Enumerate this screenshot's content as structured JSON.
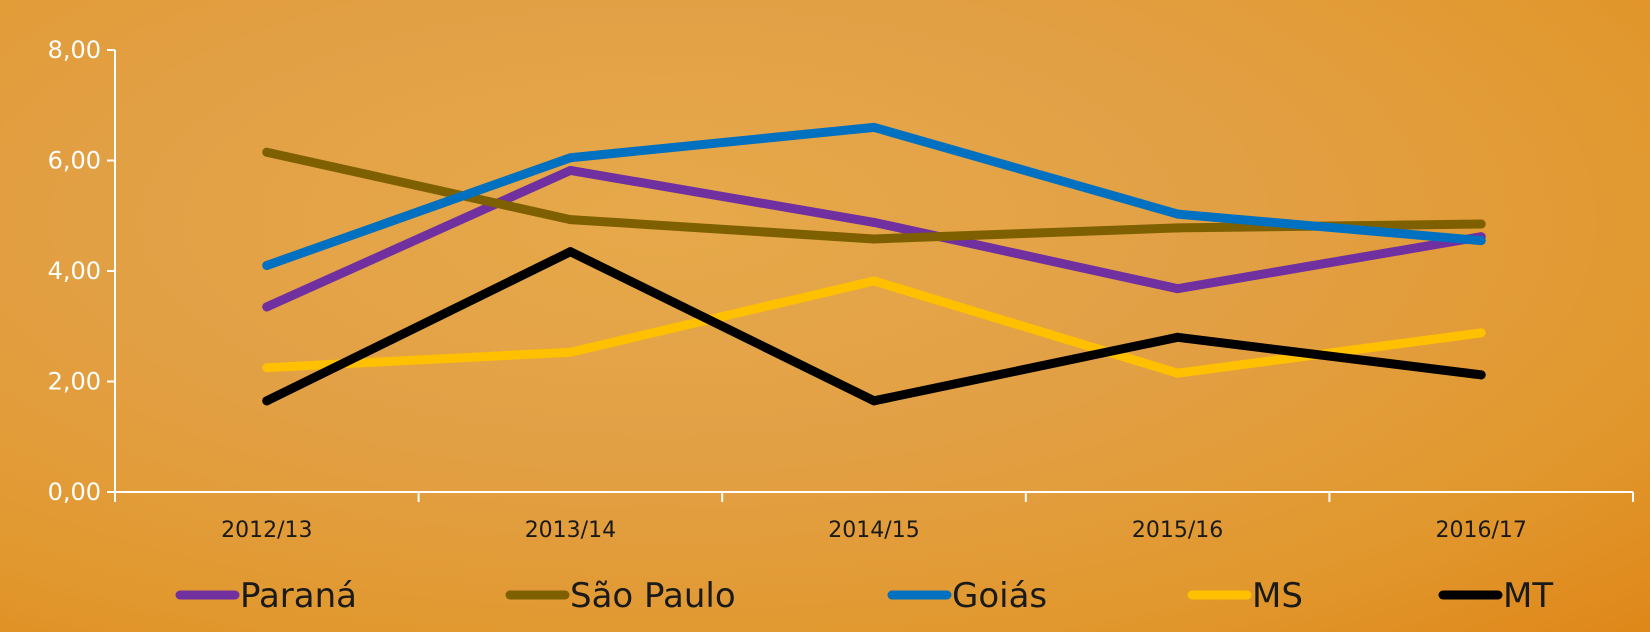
{
  "chart_data": {
    "type": "line",
    "categories": [
      "2012/13",
      "2013/14",
      "2014/15",
      "2015/16",
      "2016/17"
    ],
    "y_tick_labels": [
      "0,00",
      "2,00",
      "4,00",
      "6,00",
      "8,00"
    ],
    "y_ticks": [
      0,
      2,
      4,
      6,
      8
    ],
    "ylim": [
      0,
      8
    ],
    "grid": false,
    "legend_position": "bottom",
    "series": [
      {
        "name": "Paraná",
        "color": "#7030a0",
        "values": [
          3.35,
          5.82,
          4.88,
          3.68,
          4.62
        ]
      },
      {
        "name": "São Paulo",
        "color": "#7f6000",
        "values": [
          6.15,
          4.93,
          4.58,
          4.78,
          4.85
        ]
      },
      {
        "name": "Goiás",
        "color": "#0070c0",
        "values": [
          4.1,
          6.05,
          6.6,
          5.03,
          4.55
        ]
      },
      {
        "name": "MS",
        "color": "#ffc000",
        "values": [
          2.25,
          2.53,
          3.82,
          2.15,
          2.88
        ]
      },
      {
        "name": "MT",
        "color": "#000000",
        "values": [
          1.65,
          4.35,
          1.65,
          2.8,
          2.12
        ]
      }
    ]
  }
}
